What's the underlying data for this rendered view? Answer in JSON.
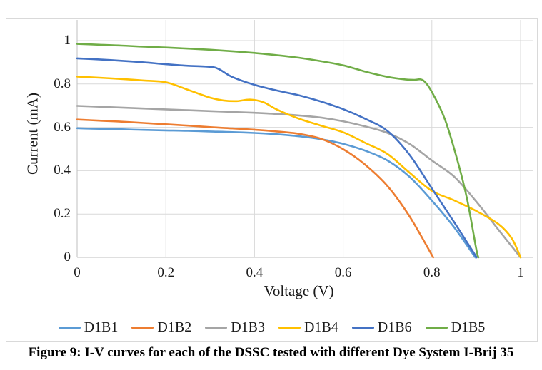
{
  "caption": "Figure 9: I-V curves for each of the DSSC tested with different Dye System I-Brij 35",
  "chart_data": {
    "type": "line",
    "title": "",
    "xlabel": "Voltage (V)",
    "ylabel": "Current (mA)",
    "xlim": [
      0,
      1.03
    ],
    "ylim": [
      0,
      1.1
    ],
    "x_ticks": [
      0,
      0.2,
      0.4,
      0.6,
      0.8,
      1
    ],
    "y_ticks": [
      0,
      0.2,
      0.4,
      0.6,
      0.8,
      1
    ],
    "x_tick_labels": [
      "0",
      "0.2",
      "0.4",
      "0.6",
      "0.8",
      "1"
    ],
    "y_tick_labels": [
      "0",
      "0.2",
      "0.4",
      "0.6",
      "0.8",
      "1"
    ],
    "grid": true,
    "legend_position": "bottom",
    "grid_color": "#d9d9d9",
    "axis_color": "#bfbfbf",
    "series": [
      {
        "name": "D1B1",
        "color": "#5B9BD5",
        "points": [
          [
            0,
            0.596
          ],
          [
            0.05,
            0.593
          ],
          [
            0.1,
            0.591
          ],
          [
            0.15,
            0.588
          ],
          [
            0.2,
            0.586
          ],
          [
            0.25,
            0.584
          ],
          [
            0.3,
            0.581
          ],
          [
            0.35,
            0.578
          ],
          [
            0.4,
            0.574
          ],
          [
            0.45,
            0.568
          ],
          [
            0.5,
            0.559
          ],
          [
            0.55,
            0.545
          ],
          [
            0.6,
            0.524
          ],
          [
            0.65,
            0.492
          ],
          [
            0.7,
            0.447
          ],
          [
            0.75,
            0.371
          ],
          [
            0.8,
            0.262
          ],
          [
            0.85,
            0.139
          ],
          [
            0.898,
            0
          ]
        ]
      },
      {
        "name": "D1B2",
        "color": "#ED7D31",
        "points": [
          [
            0,
            0.636
          ],
          [
            0.05,
            0.631
          ],
          [
            0.1,
            0.626
          ],
          [
            0.15,
            0.62
          ],
          [
            0.2,
            0.614
          ],
          [
            0.25,
            0.608
          ],
          [
            0.3,
            0.601
          ],
          [
            0.35,
            0.595
          ],
          [
            0.4,
            0.589
          ],
          [
            0.45,
            0.581
          ],
          [
            0.5,
            0.57
          ],
          [
            0.55,
            0.547
          ],
          [
            0.6,
            0.499
          ],
          [
            0.65,
            0.427
          ],
          [
            0.7,
            0.329
          ],
          [
            0.75,
            0.188
          ],
          [
            0.803,
            0
          ]
        ]
      },
      {
        "name": "D1B3",
        "color": "#A5A5A5",
        "points": [
          [
            0,
            0.699
          ],
          [
            0.05,
            0.695
          ],
          [
            0.1,
            0.691
          ],
          [
            0.15,
            0.687
          ],
          [
            0.2,
            0.683
          ],
          [
            0.25,
            0.679
          ],
          [
            0.3,
            0.675
          ],
          [
            0.35,
            0.671
          ],
          [
            0.4,
            0.667
          ],
          [
            0.45,
            0.662
          ],
          [
            0.5,
            0.655
          ],
          [
            0.55,
            0.645
          ],
          [
            0.6,
            0.628
          ],
          [
            0.65,
            0.604
          ],
          [
            0.7,
            0.574
          ],
          [
            0.75,
            0.523
          ],
          [
            0.8,
            0.447
          ],
          [
            0.85,
            0.373
          ],
          [
            0.9,
            0.258
          ],
          [
            0.95,
            0.128
          ],
          [
            1,
            0
          ]
        ]
      },
      {
        "name": "D1B4",
        "color": "#FFC000",
        "points": [
          [
            0,
            0.834
          ],
          [
            0.05,
            0.829
          ],
          [
            0.1,
            0.823
          ],
          [
            0.15,
            0.816
          ],
          [
            0.2,
            0.808
          ],
          [
            0.25,
            0.773
          ],
          [
            0.3,
            0.737
          ],
          [
            0.33,
            0.724
          ],
          [
            0.36,
            0.721
          ],
          [
            0.39,
            0.728
          ],
          [
            0.42,
            0.716
          ],
          [
            0.45,
            0.683
          ],
          [
            0.5,
            0.64
          ],
          [
            0.55,
            0.608
          ],
          [
            0.6,
            0.577
          ],
          [
            0.65,
            0.528
          ],
          [
            0.7,
            0.477
          ],
          [
            0.75,
            0.39
          ],
          [
            0.8,
            0.307
          ],
          [
            0.85,
            0.263
          ],
          [
            0.9,
            0.214
          ],
          [
            0.95,
            0.154
          ],
          [
            0.98,
            0.088
          ],
          [
            1,
            0
          ]
        ]
      },
      {
        "name": "D1B6",
        "color": "#4472C4",
        "points": [
          [
            0,
            0.918
          ],
          [
            0.05,
            0.913
          ],
          [
            0.1,
            0.907
          ],
          [
            0.15,
            0.9
          ],
          [
            0.2,
            0.891
          ],
          [
            0.25,
            0.884
          ],
          [
            0.3,
            0.879
          ],
          [
            0.32,
            0.868
          ],
          [
            0.35,
            0.832
          ],
          [
            0.4,
            0.796
          ],
          [
            0.45,
            0.77
          ],
          [
            0.5,
            0.748
          ],
          [
            0.55,
            0.719
          ],
          [
            0.6,
            0.684
          ],
          [
            0.65,
            0.639
          ],
          [
            0.7,
            0.583
          ],
          [
            0.75,
            0.472
          ],
          [
            0.8,
            0.318
          ],
          [
            0.85,
            0.163
          ],
          [
            0.901,
            0
          ]
        ]
      },
      {
        "name": "D1B5",
        "color": "#70AD47",
        "points": [
          [
            0,
            0.985
          ],
          [
            0.05,
            0.981
          ],
          [
            0.1,
            0.977
          ],
          [
            0.15,
            0.972
          ],
          [
            0.2,
            0.968
          ],
          [
            0.25,
            0.963
          ],
          [
            0.3,
            0.958
          ],
          [
            0.35,
            0.951
          ],
          [
            0.4,
            0.943
          ],
          [
            0.45,
            0.933
          ],
          [
            0.5,
            0.921
          ],
          [
            0.55,
            0.905
          ],
          [
            0.6,
            0.886
          ],
          [
            0.65,
            0.857
          ],
          [
            0.7,
            0.833
          ],
          [
            0.74,
            0.821
          ],
          [
            0.76,
            0.819
          ],
          [
            0.78,
            0.817
          ],
          [
            0.8,
            0.763
          ],
          [
            0.83,
            0.634
          ],
          [
            0.86,
            0.43
          ],
          [
            0.88,
            0.263
          ],
          [
            0.9,
            0.04
          ],
          [
            0.905,
            0
          ]
        ]
      }
    ]
  }
}
